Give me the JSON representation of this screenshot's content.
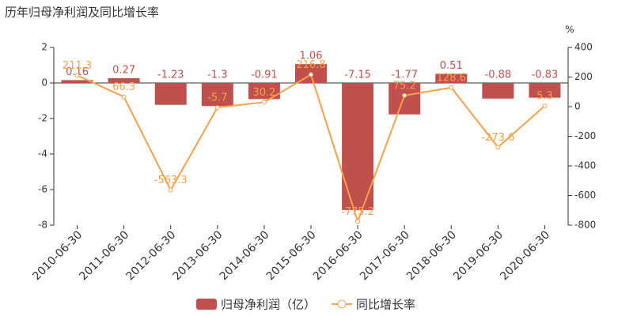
{
  "chart_data": {
    "type": "bar",
    "title": "历年归母净利润及同比增长率",
    "categories": [
      "2010-06-30",
      "2011-06-30",
      "2012-06-30",
      "2013-06-30",
      "2014-06-30",
      "2015-06-30",
      "2016-06-30",
      "2017-06-30",
      "2018-06-30",
      "2019-06-30",
      "2020-06-30"
    ],
    "series": [
      {
        "name": "归母净利润（亿）",
        "type": "bar",
        "color": "#c0504d",
        "values": [
          0.16,
          0.27,
          -1.23,
          -1.3,
          -0.91,
          1.06,
          -7.15,
          -1.77,
          0.51,
          -0.88,
          -0.83
        ]
      },
      {
        "name": "同比增长率",
        "type": "line",
        "axis": "y2",
        "color": "#f5a04a",
        "values": [
          211.3,
          66.3,
          -563.3,
          -5.7,
          30.2,
          216.8,
          -775.2,
          75.2,
          128.6,
          -273.6,
          5.3
        ]
      }
    ],
    "ylim": [
      -8,
      2
    ],
    "yticks": [
      -8,
      -6,
      -4,
      -2,
      0,
      2
    ],
    "y2lim": [
      -800,
      400
    ],
    "y2ticks": [
      -800,
      -600,
      -400,
      -200,
      0,
      200,
      400
    ],
    "y2label": "%",
    "legend": "bottom"
  }
}
